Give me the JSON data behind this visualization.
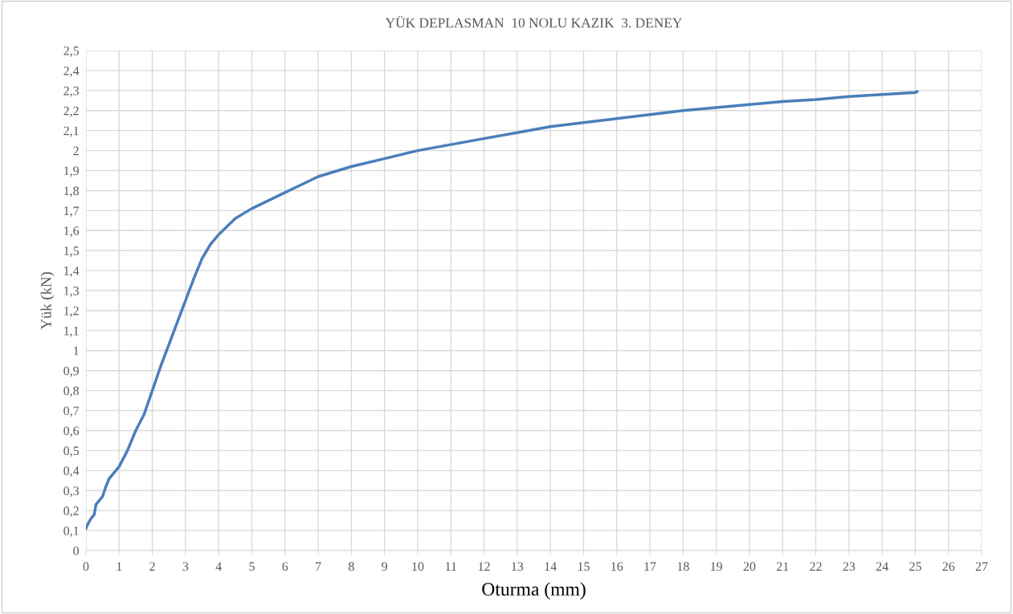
{
  "chart_data": {
    "type": "line",
    "title": "YÜK DEPLASMAN  10 NOLU KAZIK  3. DENEY",
    "xlabel": "Oturma (mm)",
    "ylabel": "Yük (kN)",
    "x": [
      0,
      0.05,
      0.15,
      0.25,
      0.3,
      0.4,
      0.5,
      0.6,
      0.7,
      0.8,
      1.0,
      1.25,
      1.5,
      1.75,
      2.0,
      2.25,
      2.5,
      2.75,
      3.0,
      3.25,
      3.5,
      3.75,
      4.0,
      4.5,
      5.0,
      5.5,
      6.0,
      6.5,
      7,
      8,
      9,
      10,
      11,
      12,
      13,
      14,
      15,
      16,
      17,
      18,
      19,
      20,
      21,
      22,
      23,
      24,
      25,
      25.05
    ],
    "series": [
      {
        "color": "#4a7ebb",
        "values": [
          0.11,
          0.13,
          0.16,
          0.18,
          0.23,
          0.25,
          0.27,
          0.32,
          0.36,
          0.38,
          0.42,
          0.5,
          0.6,
          0.68,
          0.8,
          0.92,
          1.03,
          1.14,
          1.25,
          1.36,
          1.46,
          1.53,
          1.58,
          1.66,
          1.71,
          1.75,
          1.79,
          1.83,
          1.87,
          1.92,
          1.96,
          2.0,
          2.03,
          2.06,
          2.09,
          2.12,
          2.14,
          2.16,
          2.18,
          2.2,
          2.215,
          2.23,
          2.245,
          2.255,
          2.27,
          2.28,
          2.29,
          2.295
        ]
      }
    ],
    "xlim": [
      0,
      27
    ],
    "xticks": [
      0,
      1,
      2,
      3,
      4,
      5,
      6,
      7,
      8,
      9,
      10,
      11,
      12,
      13,
      14,
      15,
      16,
      17,
      18,
      19,
      20,
      21,
      22,
      23,
      24,
      25,
      26,
      27
    ],
    "ylim": [
      0,
      2.5
    ],
    "yticks": [
      0,
      {
        "value": 0.1,
        "label": "0,1"
      },
      {
        "value": 0.2,
        "label": "0,2"
      },
      {
        "value": 0.3,
        "label": "0,3"
      },
      {
        "value": 0.4,
        "label": "0,4"
      },
      {
        "value": 0.5,
        "label": "0,5"
      },
      {
        "value": 0.6,
        "label": "0,6"
      },
      {
        "value": 0.7,
        "label": "0,7"
      },
      {
        "value": 0.8,
        "label": "0,8"
      },
      {
        "value": 0.9,
        "label": "0,9"
      },
      1,
      {
        "value": 1.1,
        "label": "1,1"
      },
      {
        "value": 1.2,
        "label": "1,2"
      },
      {
        "value": 1.3,
        "label": "1,3"
      },
      {
        "value": 1.4,
        "label": "1,4"
      },
      {
        "value": 1.5,
        "label": "1,5"
      },
      {
        "value": 1.6,
        "label": "1,6"
      },
      {
        "value": 1.7,
        "label": "1,7"
      },
      {
        "value": 1.8,
        "label": "1,8"
      },
      {
        "value": 1.9,
        "label": "1,9"
      },
      2,
      {
        "value": 2.1,
        "label": "2,1"
      },
      {
        "value": 2.2,
        "label": "2,2"
      },
      {
        "value": 2.3,
        "label": "2,3"
      },
      {
        "value": 2.4,
        "label": "2,4"
      },
      {
        "value": 2.5,
        "label": "2,5"
      }
    ],
    "grid": true,
    "legend": false,
    "marker": "none",
    "line_style": "solid"
  }
}
